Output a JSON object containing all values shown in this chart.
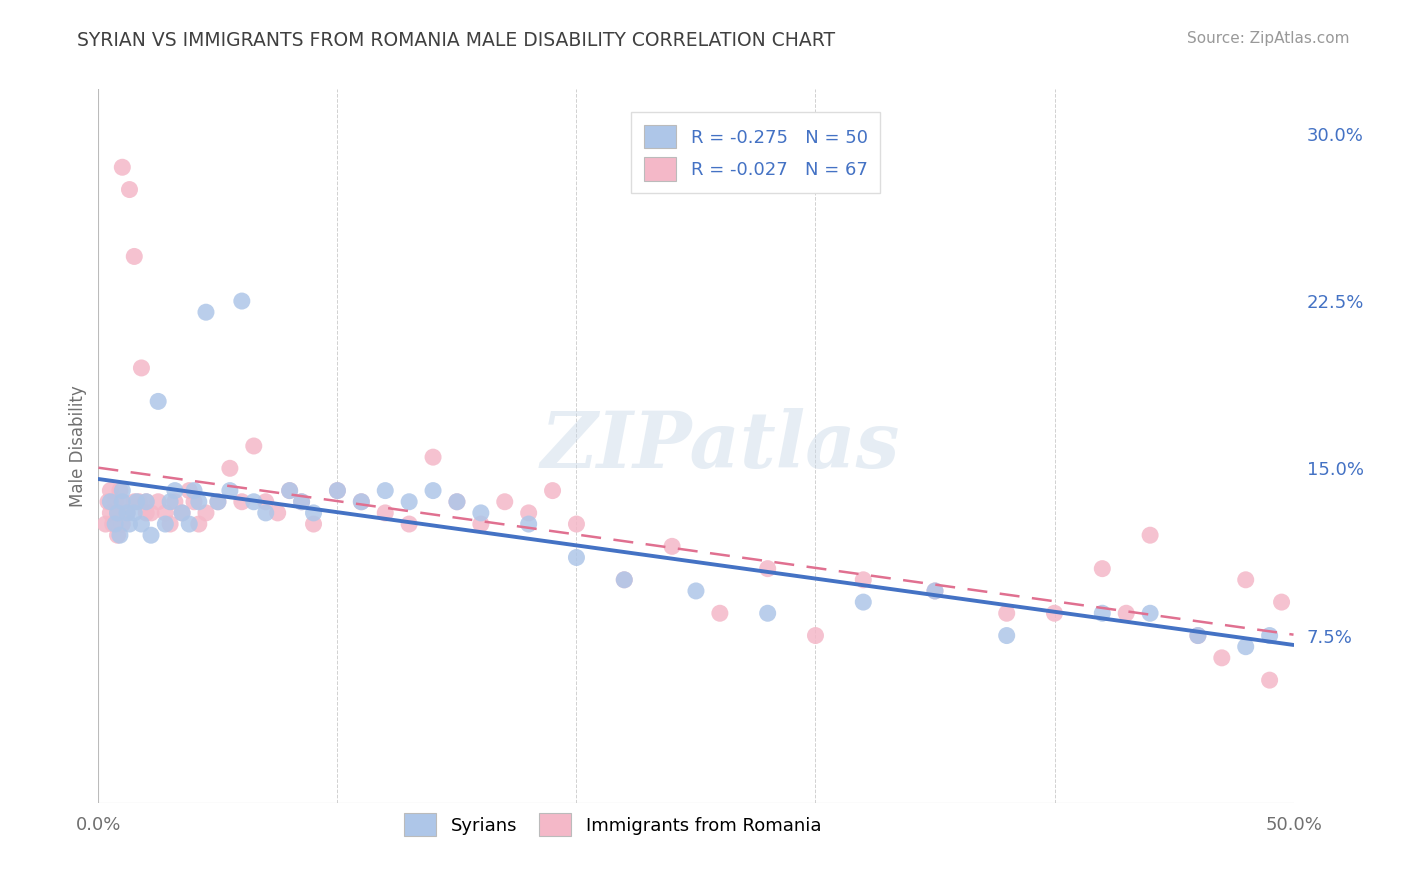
{
  "title": "SYRIAN VS IMMIGRANTS FROM ROMANIA MALE DISABILITY CORRELATION CHART",
  "source": "Source: ZipAtlas.com",
  "ylabel": "Male Disability",
  "xlim": [
    0.0,
    0.5
  ],
  "ylim": [
    0.0,
    0.32
  ],
  "watermark": "ZIPatlas",
  "legend_entries": [
    {
      "label": "R = -0.275   N = 50",
      "color": "#aec6e8"
    },
    {
      "label": "R = -0.027   N = 67",
      "color": "#f4b8c8"
    }
  ],
  "bottom_legend": [
    "Syrians",
    "Immigrants from Romania"
  ],
  "syrians_color": "#aec6e8",
  "romania_color": "#f4b8c8",
  "syrians_line_color": "#4472c4",
  "romania_line_color": "#e07090",
  "background_color": "#ffffff",
  "grid_color": "#cccccc",
  "title_color": "#404040",
  "axis_label_color": "#707070",
  "right_tick_color": "#4472c4",
  "syrians_x": [
    0.005,
    0.007,
    0.008,
    0.009,
    0.01,
    0.01,
    0.012,
    0.013,
    0.015,
    0.016,
    0.018,
    0.02,
    0.022,
    0.025,
    0.028,
    0.03,
    0.032,
    0.035,
    0.038,
    0.04,
    0.042,
    0.045,
    0.05,
    0.055,
    0.06,
    0.065,
    0.07,
    0.08,
    0.085,
    0.09,
    0.1,
    0.11,
    0.12,
    0.13,
    0.14,
    0.15,
    0.16,
    0.18,
    0.2,
    0.22,
    0.25,
    0.28,
    0.32,
    0.35,
    0.38,
    0.42,
    0.44,
    0.46,
    0.48,
    0.49
  ],
  "syrians_y": [
    0.135,
    0.125,
    0.13,
    0.12,
    0.135,
    0.14,
    0.13,
    0.125,
    0.13,
    0.135,
    0.125,
    0.135,
    0.12,
    0.18,
    0.125,
    0.135,
    0.14,
    0.13,
    0.125,
    0.14,
    0.135,
    0.22,
    0.135,
    0.14,
    0.225,
    0.135,
    0.13,
    0.14,
    0.135,
    0.13,
    0.14,
    0.135,
    0.14,
    0.135,
    0.14,
    0.135,
    0.13,
    0.125,
    0.11,
    0.1,
    0.095,
    0.085,
    0.09,
    0.095,
    0.075,
    0.085,
    0.085,
    0.075,
    0.07,
    0.075
  ],
  "romania_x": [
    0.003,
    0.004,
    0.005,
    0.005,
    0.006,
    0.007,
    0.008,
    0.008,
    0.009,
    0.01,
    0.01,
    0.01,
    0.012,
    0.013,
    0.015,
    0.015,
    0.017,
    0.018,
    0.02,
    0.02,
    0.022,
    0.025,
    0.028,
    0.03,
    0.032,
    0.035,
    0.038,
    0.04,
    0.042,
    0.045,
    0.05,
    0.055,
    0.06,
    0.065,
    0.07,
    0.075,
    0.08,
    0.085,
    0.09,
    0.1,
    0.11,
    0.12,
    0.13,
    0.14,
    0.15,
    0.16,
    0.17,
    0.18,
    0.19,
    0.2,
    0.22,
    0.24,
    0.26,
    0.28,
    0.3,
    0.32,
    0.35,
    0.38,
    0.4,
    0.42,
    0.43,
    0.44,
    0.46,
    0.47,
    0.48,
    0.49,
    0.495
  ],
  "romania_y": [
    0.125,
    0.135,
    0.13,
    0.14,
    0.125,
    0.135,
    0.12,
    0.13,
    0.14,
    0.125,
    0.135,
    0.285,
    0.13,
    0.275,
    0.245,
    0.135,
    0.135,
    0.195,
    0.13,
    0.135,
    0.13,
    0.135,
    0.13,
    0.125,
    0.135,
    0.13,
    0.14,
    0.135,
    0.125,
    0.13,
    0.135,
    0.15,
    0.135,
    0.16,
    0.135,
    0.13,
    0.14,
    0.135,
    0.125,
    0.14,
    0.135,
    0.13,
    0.125,
    0.155,
    0.135,
    0.125,
    0.135,
    0.13,
    0.14,
    0.125,
    0.1,
    0.115,
    0.085,
    0.105,
    0.075,
    0.1,
    0.095,
    0.085,
    0.085,
    0.105,
    0.085,
    0.12,
    0.075,
    0.065,
    0.1,
    0.055,
    0.09
  ]
}
